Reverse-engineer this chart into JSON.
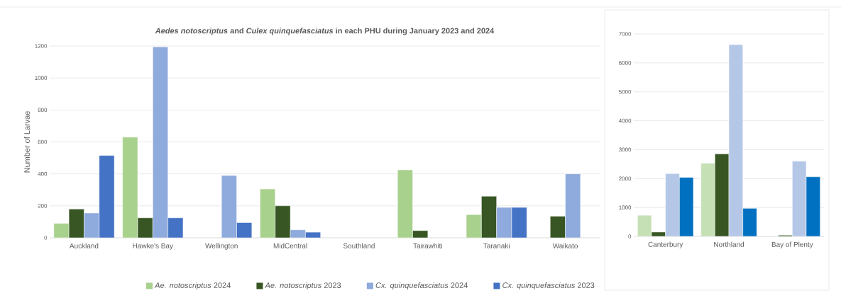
{
  "chart_data": [
    {
      "type": "bar",
      "title": "*Aedes notoscriptus* and *Culex quinquefasciatus* in each PHU during January 2023 and 2024",
      "ylabel": "Number of Larvae",
      "categories": [
        "Auckland",
        "Hawke's Bay",
        "Wellington",
        "MidCentral",
        "Southland",
        "Tairawhiti",
        "Taranaki",
        "Waikato"
      ],
      "series": [
        {
          "name": "*Ae. notoscriptus* 2024",
          "color": "#a9d18e",
          "values": [
            90,
            630,
            null,
            305,
            null,
            425,
            145,
            null
          ]
        },
        {
          "name": "*Ae. notoscriptus* 2023",
          "color": "#375623",
          "values": [
            180,
            125,
            null,
            200,
            null,
            45,
            260,
            135
          ]
        },
        {
          "name": "*Cx. quinquefasciatus* 2024",
          "color": "#8faadc",
          "values": [
            155,
            1195,
            390,
            50,
            null,
            null,
            190,
            400
          ]
        },
        {
          "name": "*Cx. quinquefasciatus* 2023",
          "color": "#4472c4",
          "values": [
            515,
            125,
            95,
            35,
            null,
            null,
            190,
            null
          ]
        }
      ],
      "ylim": [
        0,
        1200
      ],
      "yticks": [
        0,
        200,
        400,
        600,
        800,
        1000,
        1200
      ],
      "grid": "y",
      "legend": "bottom"
    },
    {
      "type": "bar",
      "categories": [
        "Canterbury",
        "Northland",
        "Bay of Plenty"
      ],
      "series": [
        {
          "color": "#c5e0b4",
          "values": [
            730,
            2530,
            null
          ]
        },
        {
          "color": "#375623",
          "values": [
            150,
            2850,
            40
          ]
        },
        {
          "color": "#b4c7e7",
          "values": [
            2170,
            6630,
            2600
          ]
        },
        {
          "color": "#0070c0",
          "values": [
            2040,
            970,
            2060
          ]
        }
      ],
      "ylim": [
        0,
        7000
      ],
      "yticks": [
        0,
        1000,
        2000,
        3000,
        4000,
        5000,
        6000,
        7000
      ],
      "grid": "y"
    }
  ]
}
